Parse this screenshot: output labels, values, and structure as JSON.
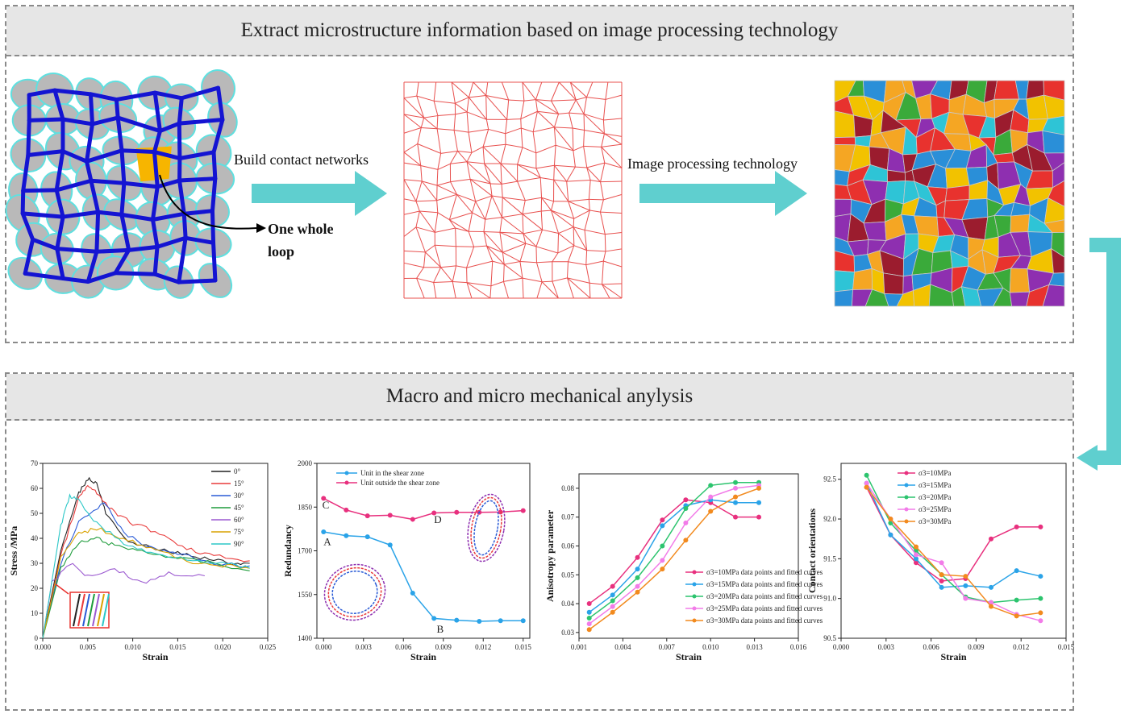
{
  "panel_top": {
    "title": "Extract microstructure information based on image processing technology"
  },
  "panel_bottom": {
    "title": "Macro and micro mechanical anylysis"
  },
  "steps": {
    "build_label": "Build contact networks",
    "image_label": "Image processing technology",
    "loop_label_line1": "One whole",
    "loop_label_line2": "loop"
  },
  "colors": {
    "arrow": "#5fcfcf",
    "network": "#e8504e",
    "particles": "#b9b9b9",
    "contact": "#1414d2",
    "loop": "#f7b500"
  },
  "chart_data": [
    {
      "type": "line",
      "xlabel": "Strain",
      "ylabel": "Stress /MPa",
      "xlim": [
        0,
        0.025
      ],
      "ylim": [
        0,
        70
      ],
      "xticks": [
        "0.000",
        "0.005",
        "0.010",
        "0.015",
        "0.020",
        "0.025"
      ],
      "yticks": [
        "0",
        "10",
        "20",
        "30",
        "40",
        "50",
        "60",
        "70"
      ],
      "legend_position": "top-right",
      "series": [
        {
          "name": "0°",
          "color": "#222222",
          "x": [
            0,
            0.002,
            0.004,
            0.005,
            0.006,
            0.007,
            0.009,
            0.012,
            0.015,
            0.018,
            0.021,
            0.023
          ],
          "y": [
            0,
            35,
            58,
            64,
            62,
            50,
            40,
            36,
            34,
            32,
            30,
            30
          ]
        },
        {
          "name": "15°",
          "color": "#e83a3a",
          "x": [
            0,
            0.002,
            0.004,
            0.005,
            0.006,
            0.008,
            0.01,
            0.013,
            0.016,
            0.019,
            0.023
          ],
          "y": [
            0,
            33,
            56,
            61,
            58,
            50,
            46,
            42,
            36,
            33,
            31
          ]
        },
        {
          "name": "30°",
          "color": "#2a5bd6",
          "x": [
            0,
            0.002,
            0.004,
            0.006,
            0.007,
            0.009,
            0.012,
            0.015,
            0.019,
            0.023
          ],
          "y": [
            0,
            30,
            47,
            52,
            54,
            42,
            36,
            34,
            30,
            29
          ]
        },
        {
          "name": "45°",
          "color": "#1f9c3c",
          "x": [
            0,
            0.002,
            0.004,
            0.006,
            0.008,
            0.011,
            0.015,
            0.019,
            0.023
          ],
          "y": [
            0,
            28,
            38,
            40,
            37,
            35,
            32,
            30,
            27
          ]
        },
        {
          "name": "60°",
          "color": "#9b59d0",
          "x": [
            0,
            0.001,
            0.003,
            0.005,
            0.008,
            0.011,
            0.014,
            0.018
          ],
          "y": [
            0,
            22,
            30,
            25,
            28,
            22,
            26,
            25
          ]
        },
        {
          "name": "75°",
          "color": "#d9a200",
          "x": [
            0,
            0.002,
            0.004,
            0.006,
            0.009,
            0.012,
            0.016,
            0.02,
            0.023
          ],
          "y": [
            0,
            32,
            42,
            44,
            40,
            36,
            31,
            29,
            28
          ]
        },
        {
          "name": "90°",
          "color": "#2bc7c7",
          "x": [
            0,
            0.002,
            0.003,
            0.004,
            0.006,
            0.009,
            0.012,
            0.016,
            0.02,
            0.023
          ],
          "y": [
            0,
            45,
            57,
            55,
            46,
            38,
            34,
            32,
            30,
            28
          ]
        }
      ]
    },
    {
      "type": "line",
      "xlabel": "Strain",
      "ylabel": "Redundancy",
      "xlim": [
        -0.0005,
        0.0155
      ],
      "ylim": [
        1400,
        2000
      ],
      "xticks": [
        "0.000",
        "0.003",
        "0.006",
        "0.009",
        "0.012",
        "0.015"
      ],
      "yticks": [
        "1400",
        "1550",
        "1700",
        "1850",
        "2000"
      ],
      "legend_position": "top-left",
      "annotations": [
        "A",
        "B",
        "C",
        "D"
      ],
      "series": [
        {
          "name": "Unit in the shear zone",
          "color": "#2aa3e8",
          "x": [
            0,
            0.0017,
            0.0033,
            0.005,
            0.0067,
            0.0083,
            0.01,
            0.0117,
            0.0133,
            0.015
          ],
          "y": [
            1765,
            1752,
            1748,
            1720,
            1555,
            1468,
            1462,
            1458,
            1460,
            1460
          ]
        },
        {
          "name": "Unit outside the shear zone",
          "color": "#e8307e",
          "x": [
            0,
            0.0017,
            0.0033,
            0.005,
            0.0067,
            0.0083,
            0.01,
            0.0117,
            0.0133,
            0.015
          ],
          "y": [
            1880,
            1840,
            1820,
            1822,
            1808,
            1830,
            1832,
            1832,
            1833,
            1838
          ]
        }
      ]
    },
    {
      "type": "scatter",
      "xlabel": "Strain",
      "ylabel": "Anisotropy parameter",
      "xlim": [
        0.001,
        0.016
      ],
      "ylim": [
        0.028,
        0.085
      ],
      "xticks": [
        "0.001",
        "0.004",
        "0.007",
        "0.010",
        "0.013",
        "0.016"
      ],
      "yticks": [
        "0.03",
        "0.04",
        "0.05",
        "0.06",
        "0.07",
        "0.08"
      ],
      "legend_position": "bottom-right",
      "series": [
        {
          "name": "σ3=10MPa data points and fitted curves",
          "color": "#e8307e",
          "x": [
            0.0017,
            0.0033,
            0.005,
            0.0067,
            0.0083,
            0.01,
            0.0117,
            0.0133
          ],
          "y": [
            0.04,
            0.046,
            0.056,
            0.069,
            0.076,
            0.075,
            0.07,
            0.07
          ]
        },
        {
          "name": "σ3=15MPa data points and fitted curves",
          "color": "#2aa3e8",
          "x": [
            0.0017,
            0.0033,
            0.005,
            0.0067,
            0.0083,
            0.01,
            0.0117,
            0.0133
          ],
          "y": [
            0.037,
            0.043,
            0.052,
            0.067,
            0.074,
            0.076,
            0.075,
            0.075
          ]
        },
        {
          "name": "σ3=20MPa data points and fitted curves",
          "color": "#2cc46e",
          "x": [
            0.0017,
            0.0033,
            0.005,
            0.0067,
            0.0083,
            0.01,
            0.0117,
            0.0133
          ],
          "y": [
            0.035,
            0.041,
            0.049,
            0.06,
            0.073,
            0.081,
            0.082,
            0.082
          ]
        },
        {
          "name": "σ3=25MPa data points and fitted curves",
          "color": "#f27ce8",
          "x": [
            0.0017,
            0.0033,
            0.005,
            0.0067,
            0.0083,
            0.01,
            0.0117,
            0.0133
          ],
          "y": [
            0.033,
            0.039,
            0.046,
            0.055,
            0.068,
            0.077,
            0.08,
            0.081
          ]
        },
        {
          "name": "σ3=30MPa data points and fitted curves",
          "color": "#f28a1e",
          "x": [
            0.0017,
            0.0033,
            0.005,
            0.0067,
            0.0083,
            0.01,
            0.0117,
            0.0133
          ],
          "y": [
            0.031,
            0.037,
            0.044,
            0.052,
            0.062,
            0.072,
            0.077,
            0.08
          ]
        }
      ]
    },
    {
      "type": "line",
      "xlabel": "Strain",
      "ylabel": "Contact orientations",
      "xlim": [
        0.0,
        0.015
      ],
      "ylim": [
        90.5,
        92.7
      ],
      "xticks": [
        "0.000",
        "0.003",
        "0.006",
        "0.009",
        "0.012",
        "0.015"
      ],
      "yticks": [
        "90.5",
        "91.0",
        "91.5",
        "92.0",
        "92.5"
      ],
      "legend_position": "top-right",
      "series": [
        {
          "name": "σ3=10MPa",
          "color": "#e8307e",
          "x": [
            0.0017,
            0.0033,
            0.005,
            0.0067,
            0.0083,
            0.01,
            0.0117,
            0.0133
          ],
          "y": [
            92.4,
            91.8,
            91.45,
            91.22,
            91.25,
            91.75,
            91.9,
            91.9
          ]
        },
        {
          "name": "σ3=15MPa",
          "color": "#2aa3e8",
          "x": [
            0.0017,
            0.0033,
            0.005,
            0.0067,
            0.0083,
            0.01,
            0.0117,
            0.0133
          ],
          "y": [
            92.45,
            91.8,
            91.5,
            91.14,
            91.16,
            91.14,
            91.35,
            91.28
          ]
        },
        {
          "name": "σ3=20MPa",
          "color": "#2cc46e",
          "x": [
            0.0017,
            0.0033,
            0.005,
            0.0067,
            0.0083,
            0.01,
            0.0117,
            0.0133
          ],
          "y": [
            92.55,
            91.95,
            91.6,
            91.3,
            91.02,
            90.95,
            90.98,
            91.0
          ]
        },
        {
          "name": "σ3=25MPa",
          "color": "#f27ce8",
          "x": [
            0.0017,
            0.0033,
            0.005,
            0.0067,
            0.0083,
            0.01,
            0.0117,
            0.0133
          ],
          "y": [
            92.45,
            92.0,
            91.55,
            91.45,
            91.0,
            90.95,
            90.8,
            90.72
          ]
        },
        {
          "name": "σ3=30MPa",
          "color": "#f28a1e",
          "x": [
            0.0017,
            0.0033,
            0.005,
            0.0067,
            0.0083,
            0.01,
            0.0117,
            0.0133
          ],
          "y": [
            92.4,
            92.0,
            91.65,
            91.3,
            91.28,
            90.9,
            90.78,
            90.82
          ]
        }
      ]
    }
  ]
}
